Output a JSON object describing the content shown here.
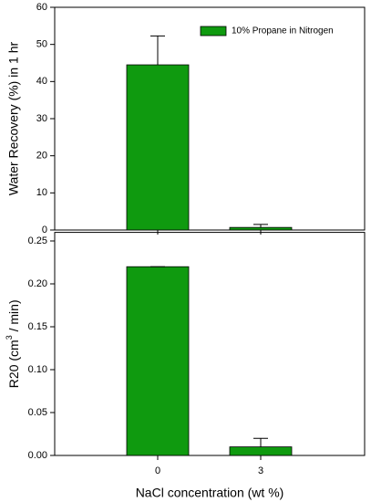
{
  "chart_data": [
    {
      "type": "bar",
      "ylabel": "Water Recovery (%) in 1 hr",
      "series": [
        {
          "name": "10% Propane in Nitrogen",
          "color": "#0f9a0f",
          "values": [
            44.5,
            0.7
          ],
          "error": [
            7.8,
            0.8
          ]
        }
      ],
      "ylim": [
        0,
        60
      ],
      "yticks": [
        0,
        10,
        20,
        30,
        40,
        50,
        60
      ],
      "legend": "upper right"
    },
    {
      "type": "bar",
      "xlabel": "NaCl concentration (wt %)",
      "ylabel": [
        "R20 (cm",
        "3",
        " / min)"
      ],
      "categories": [
        "0",
        "3"
      ],
      "series": [
        {
          "color": "#0f9a0f",
          "values": [
            0.22,
            0.01
          ],
          "error": [
            0,
            0.01
          ]
        }
      ],
      "ylim": [
        0,
        0.26
      ],
      "yticks": [
        {
          "value": 0,
          "label": "0.00"
        },
        {
          "value": 0.05,
          "label": "0.05"
        },
        {
          "value": 0.1,
          "label": "0.10"
        },
        {
          "value": 0.15,
          "label": "0.15"
        },
        {
          "value": 0.2,
          "label": "0.20"
        },
        {
          "value": 0.25,
          "label": "0.25"
        }
      ]
    }
  ]
}
